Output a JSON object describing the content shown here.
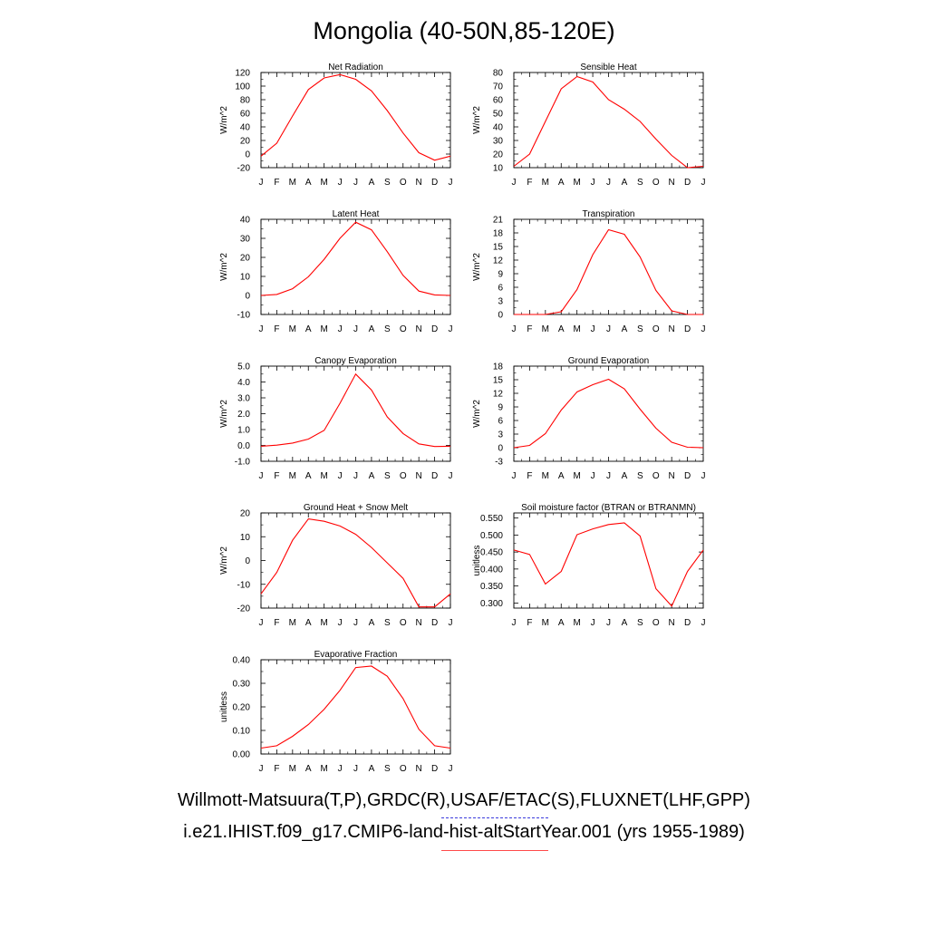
{
  "figure": {
    "title": "Mongolia (40-50N,85-120E)",
    "legend": {
      "observations_label": "Willmott-Matsuura(T,P),GRDC(R),USAF/ETAC(S),FLUXNET(LHF,GPP)",
      "model_label": "i.e21.IHIST.f09_g17.CMIP6-land-hist-altStartYear.001 (yrs 1955-1989)"
    },
    "colors": {
      "model_line": "#ff0000",
      "observations_line": "#3b3bdd"
    }
  },
  "chart_data": [
    {
      "type": "line",
      "title": "Net Radiation",
      "ylabel": "W/m^2",
      "categories": [
        "J",
        "F",
        "M",
        "A",
        "M",
        "J",
        "J",
        "A",
        "S",
        "O",
        "N",
        "D",
        "J"
      ],
      "ylim": [
        -20,
        120
      ],
      "yticks": [
        -20,
        0,
        20,
        40,
        60,
        80,
        100,
        120
      ],
      "ytick_labels": [
        "-20",
        "0",
        "20",
        "40",
        "60",
        "80",
        "100",
        "120"
      ],
      "series": [
        {
          "values": [
            -3,
            16,
            56,
            95,
            112,
            117,
            110,
            93,
            64,
            31,
            2,
            -9,
            -3
          ]
        }
      ]
    },
    {
      "type": "line",
      "title": "Sensible Heat",
      "ylabel": "W/m^2",
      "categories": [
        "J",
        "F",
        "M",
        "A",
        "M",
        "J",
        "J",
        "A",
        "S",
        "O",
        "N",
        "D",
        "J"
      ],
      "ylim": [
        10,
        80
      ],
      "yticks": [
        10,
        20,
        30,
        40,
        50,
        60,
        70,
        80
      ],
      "ytick_labels": [
        "10",
        "20",
        "30",
        "40",
        "50",
        "60",
        "70",
        "80"
      ],
      "series": [
        {
          "values": [
            11,
            20,
            44,
            68,
            77,
            73,
            60,
            53,
            44,
            31,
            19,
            10,
            11
          ]
        }
      ]
    },
    {
      "type": "line",
      "title": "Latent Heat",
      "ylabel": "W/m^2",
      "categories": [
        "J",
        "F",
        "M",
        "A",
        "M",
        "J",
        "J",
        "A",
        "S",
        "O",
        "N",
        "D",
        "J"
      ],
      "ylim": [
        -10,
        40
      ],
      "yticks": [
        -10,
        0,
        10,
        20,
        30,
        40
      ],
      "ytick_labels": [
        "-10",
        "0",
        "10",
        "20",
        "30",
        "40"
      ],
      "series": [
        {
          "values": [
            0,
            0.5,
            3.5,
            9.8,
            19,
            30,
            38.5,
            34.5,
            23,
            10.5,
            2.3,
            0.3,
            0
          ]
        }
      ]
    },
    {
      "type": "line",
      "title": "Transpiration",
      "ylabel": "W/m^2",
      "categories": [
        "J",
        "F",
        "M",
        "A",
        "M",
        "J",
        "J",
        "A",
        "S",
        "O",
        "N",
        "D",
        "J"
      ],
      "ylim": [
        0,
        21
      ],
      "yticks": [
        0,
        3,
        6,
        9,
        12,
        15,
        18,
        21
      ],
      "ytick_labels": [
        "0",
        "3",
        "6",
        "9",
        "12",
        "15",
        "18",
        "21"
      ],
      "series": [
        {
          "values": [
            0,
            0,
            0,
            0.6,
            5.5,
            13.2,
            18.7,
            17.7,
            12.7,
            5.3,
            0.8,
            0,
            0
          ]
        }
      ]
    },
    {
      "type": "line",
      "title": "Canopy Evaporation",
      "ylabel": "W/m^2",
      "categories": [
        "J",
        "F",
        "M",
        "A",
        "M",
        "J",
        "J",
        "A",
        "S",
        "O",
        "N",
        "D",
        "J"
      ],
      "ylim": [
        -1,
        5
      ],
      "yticks": [
        -1,
        0,
        1,
        2,
        3,
        4,
        5
      ],
      "ytick_labels": [
        "-1.0",
        "0.0",
        "1.0",
        "2.0",
        "3.0",
        "4.0",
        "5.0"
      ],
      "series": [
        {
          "values": [
            -0.05,
            0.02,
            0.15,
            0.4,
            0.95,
            2.65,
            4.5,
            3.5,
            1.8,
            0.75,
            0.1,
            -0.07,
            -0.05
          ]
        }
      ]
    },
    {
      "type": "line",
      "title": "Ground Evaporation",
      "ylabel": "W/m^2",
      "categories": [
        "J",
        "F",
        "M",
        "A",
        "M",
        "J",
        "J",
        "A",
        "S",
        "O",
        "N",
        "D",
        "J"
      ],
      "ylim": [
        -3,
        18
      ],
      "yticks": [
        -3,
        0,
        3,
        6,
        9,
        12,
        15,
        18
      ],
      "ytick_labels": [
        "-3",
        "0",
        "3",
        "6",
        "9",
        "12",
        "15",
        "18"
      ],
      "series": [
        {
          "values": [
            0,
            0.5,
            3.1,
            8.3,
            12.3,
            13.9,
            15.1,
            13,
            8.5,
            4.3,
            1.2,
            0.1,
            0
          ]
        }
      ]
    },
    {
      "type": "line",
      "title": "Ground Heat + Snow Melt",
      "ylabel": "W/m^2",
      "categories": [
        "J",
        "F",
        "M",
        "A",
        "M",
        "J",
        "J",
        "A",
        "S",
        "O",
        "N",
        "D",
        "J"
      ],
      "ylim": [
        -20,
        20
      ],
      "yticks": [
        -20,
        -10,
        0,
        10,
        20
      ],
      "ytick_labels": [
        "-20",
        "-10",
        "0",
        "10",
        "20"
      ],
      "series": [
        {
          "values": [
            -14,
            -5,
            8.5,
            17.5,
            16.5,
            14.5,
            11,
            5.5,
            -1,
            -7.5,
            -19.5,
            -19.5,
            -14
          ]
        }
      ]
    },
    {
      "type": "line",
      "title": "Soil moisture factor (BTRAN or BTRANMN)",
      "ylabel": "unitless",
      "categories": [
        "J",
        "F",
        "M",
        "A",
        "M",
        "J",
        "J",
        "A",
        "S",
        "O",
        "N",
        "D",
        "J"
      ],
      "ylim": [
        0.285,
        0.565
      ],
      "yticks": [
        0.3,
        0.35,
        0.4,
        0.45,
        0.5,
        0.55
      ],
      "ytick_labels": [
        "0.300",
        "0.350",
        "0.400",
        "0.450",
        "0.500",
        "0.550"
      ],
      "series": [
        {
          "values": [
            0.456,
            0.443,
            0.356,
            0.393,
            0.501,
            0.518,
            0.531,
            0.536,
            0.497,
            0.342,
            0.291,
            0.393,
            0.456
          ]
        }
      ]
    },
    {
      "type": "line",
      "title": "Evaporative Fraction",
      "ylabel": "unitless",
      "categories": [
        "J",
        "F",
        "M",
        "A",
        "M",
        "J",
        "J",
        "A",
        "S",
        "O",
        "N",
        "D",
        "J"
      ],
      "ylim": [
        0,
        0.4
      ],
      "yticks": [
        0,
        0.1,
        0.2,
        0.3,
        0.4
      ],
      "ytick_labels": [
        "0.00",
        "0.10",
        "0.20",
        "0.30",
        "0.40"
      ],
      "series": [
        {
          "values": [
            0.025,
            0.035,
            0.075,
            0.125,
            0.19,
            0.27,
            0.367,
            0.373,
            0.33,
            0.235,
            0.105,
            0.035,
            0.025
          ]
        }
      ]
    }
  ]
}
